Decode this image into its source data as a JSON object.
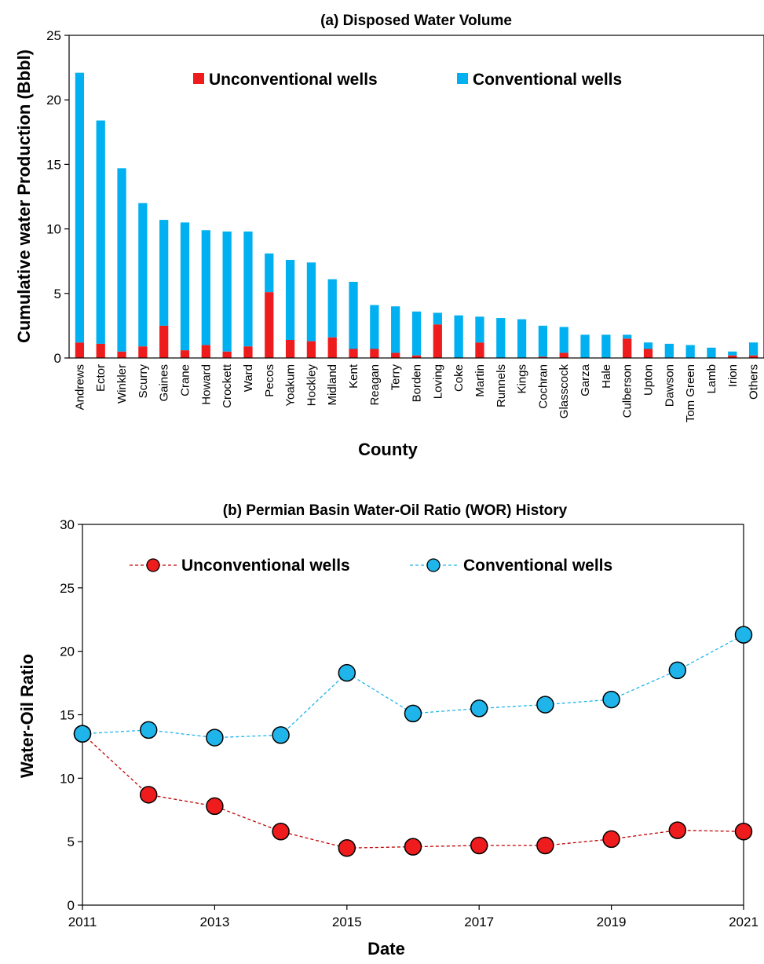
{
  "chart_data": [
    {
      "type": "bar",
      "stacked": true,
      "title": "(a) Disposed Water Volume",
      "xlabel": "County",
      "ylabel": "Cumulative water Production (Bbbl)",
      "ylim": [
        0,
        25
      ],
      "yticks": [
        0,
        5,
        10,
        15,
        20,
        25
      ],
      "grid": false,
      "legend_position": "top",
      "categories": [
        "Andrews",
        "Ector",
        "Winkler",
        "Scurry",
        "Gaines",
        "Crane",
        "Howard",
        "Crockett",
        "Ward",
        "Pecos",
        "Yoakum",
        "Hockley",
        "Midland",
        "Kent",
        "Reagan",
        "Terry",
        "Borden",
        "Loving",
        "Coke",
        "Martin",
        "Runnels",
        "Kings",
        "Cochran",
        "Glasscock",
        "Garza",
        "Hale",
        "Culberson",
        "Upton",
        "Dawson",
        "Tom Green",
        "Lamb",
        "Irion",
        "Others"
      ],
      "series": [
        {
          "name": "Unconventional wells",
          "color": "#ee1c1c",
          "values": [
            1.2,
            1.1,
            0.5,
            0.9,
            2.5,
            0.6,
            1.0,
            0.5,
            0.9,
            5.1,
            1.4,
            1.3,
            1.6,
            0.7,
            0.7,
            0.4,
            0.2,
            2.6,
            0.0,
            1.2,
            0.0,
            0.0,
            0.1,
            0.4,
            0.0,
            0.0,
            1.5,
            0.7,
            0.0,
            0.0,
            0.0,
            0.2,
            0.2
          ]
        },
        {
          "name": "Conventional wells",
          "color": "#00b0f0",
          "values": [
            20.9,
            17.3,
            14.2,
            11.1,
            8.2,
            9.9,
            8.9,
            9.3,
            8.9,
            3.0,
            6.2,
            6.1,
            4.5,
            5.2,
            3.4,
            3.6,
            3.4,
            0.9,
            3.3,
            2.0,
            3.1,
            3.0,
            2.4,
            2.0,
            1.8,
            1.8,
            0.3,
            0.5,
            1.1,
            1.0,
            0.8,
            0.3,
            1.0
          ]
        }
      ]
    },
    {
      "type": "line",
      "title": "(b) Permian Basin Water-Oil Ratio (WOR) History",
      "xlabel": "Date",
      "ylabel": "Water-Oil Ratio",
      "xlim": [
        2011,
        2021
      ],
      "ylim": [
        0,
        30
      ],
      "xticks": [
        "2011",
        "2013",
        "2015",
        "2017",
        "2019",
        "2021"
      ],
      "yticks": [
        0,
        5,
        10,
        15,
        20,
        25,
        30
      ],
      "grid": false,
      "legend_position": "top",
      "x": [
        2011,
        2012,
        2013,
        2014,
        2015,
        2016,
        2017,
        2018,
        2019,
        2020,
        2021
      ],
      "series": [
        {
          "name": "Unconventional wells",
          "color": "#ee1c1c",
          "values": [
            13.5,
            8.7,
            7.8,
            5.8,
            4.5,
            4.6,
            4.7,
            4.7,
            5.2,
            5.9,
            5.8
          ]
        },
        {
          "name": "Conventional wells",
          "color": "#1fb5ea",
          "values": [
            13.5,
            13.8,
            13.2,
            13.4,
            18.3,
            15.1,
            15.5,
            15.8,
            16.2,
            18.5,
            21.3
          ]
        }
      ]
    }
  ]
}
